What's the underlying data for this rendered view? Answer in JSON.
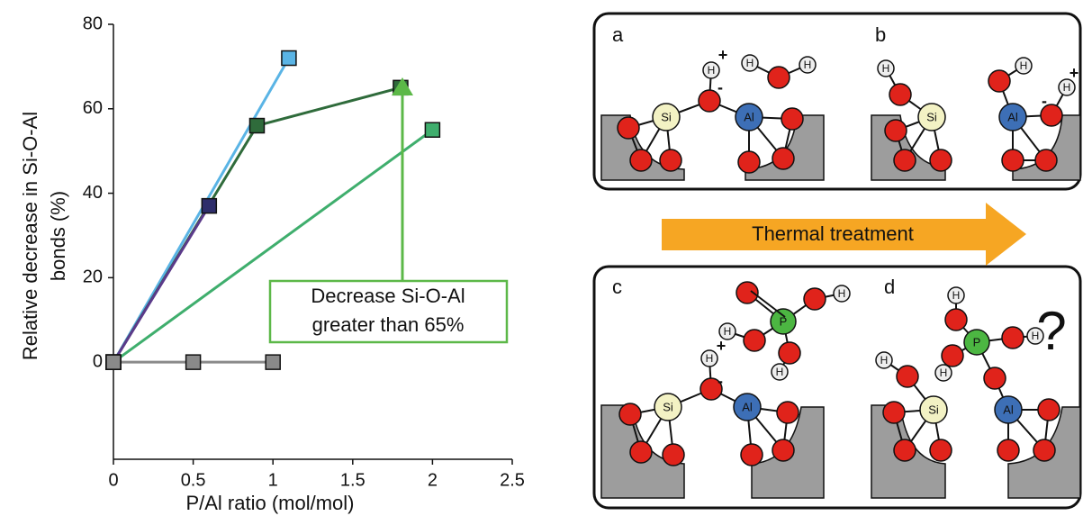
{
  "chart_data": {
    "type": "line",
    "xlabel": "P/Al ratio (mol/mol)",
    "ylabel": [
      "Relative decrease in Si-O-Al",
      "bonds (%)"
    ],
    "annotation": [
      "Decrease Si-O-Al",
      "greater than 65%"
    ],
    "xlim": [
      0,
      2.5
    ],
    "xticks": [
      0,
      0.5,
      1,
      1.5,
      2,
      2.5
    ],
    "ylim": [
      -23,
      80
    ],
    "yticks": [
      0,
      20,
      40,
      60,
      80
    ],
    "series": [
      {
        "color": "#5ab4e5",
        "x": [
          0,
          1.1
        ],
        "values": [
          0,
          72
        ]
      },
      {
        "color": "#3fae6d",
        "x": [
          0,
          2
        ],
        "values": [
          0,
          55
        ]
      },
      {
        "color": "#2f6b3b",
        "x": [
          0,
          0.9,
          1.8
        ],
        "values": [
          0,
          56,
          65
        ]
      },
      {
        "color": "#5b3a8a",
        "marker_color": "#2e2d6b",
        "x": [
          0,
          0.6
        ],
        "values": [
          0,
          37
        ]
      },
      {
        "color": "#8a8a8a",
        "x": [
          0,
          0.5,
          1
        ],
        "values": [
          0,
          0,
          0
        ]
      }
    ]
  },
  "diagram": {
    "panels": [
      "a",
      "b",
      "c",
      "d"
    ],
    "arrow_label": "Thermal treatment",
    "question": "?",
    "labels": {
      "h": "H",
      "si": "Si",
      "al": "Al",
      "p": "P",
      "plus": "+",
      "minus": "-"
    }
  }
}
